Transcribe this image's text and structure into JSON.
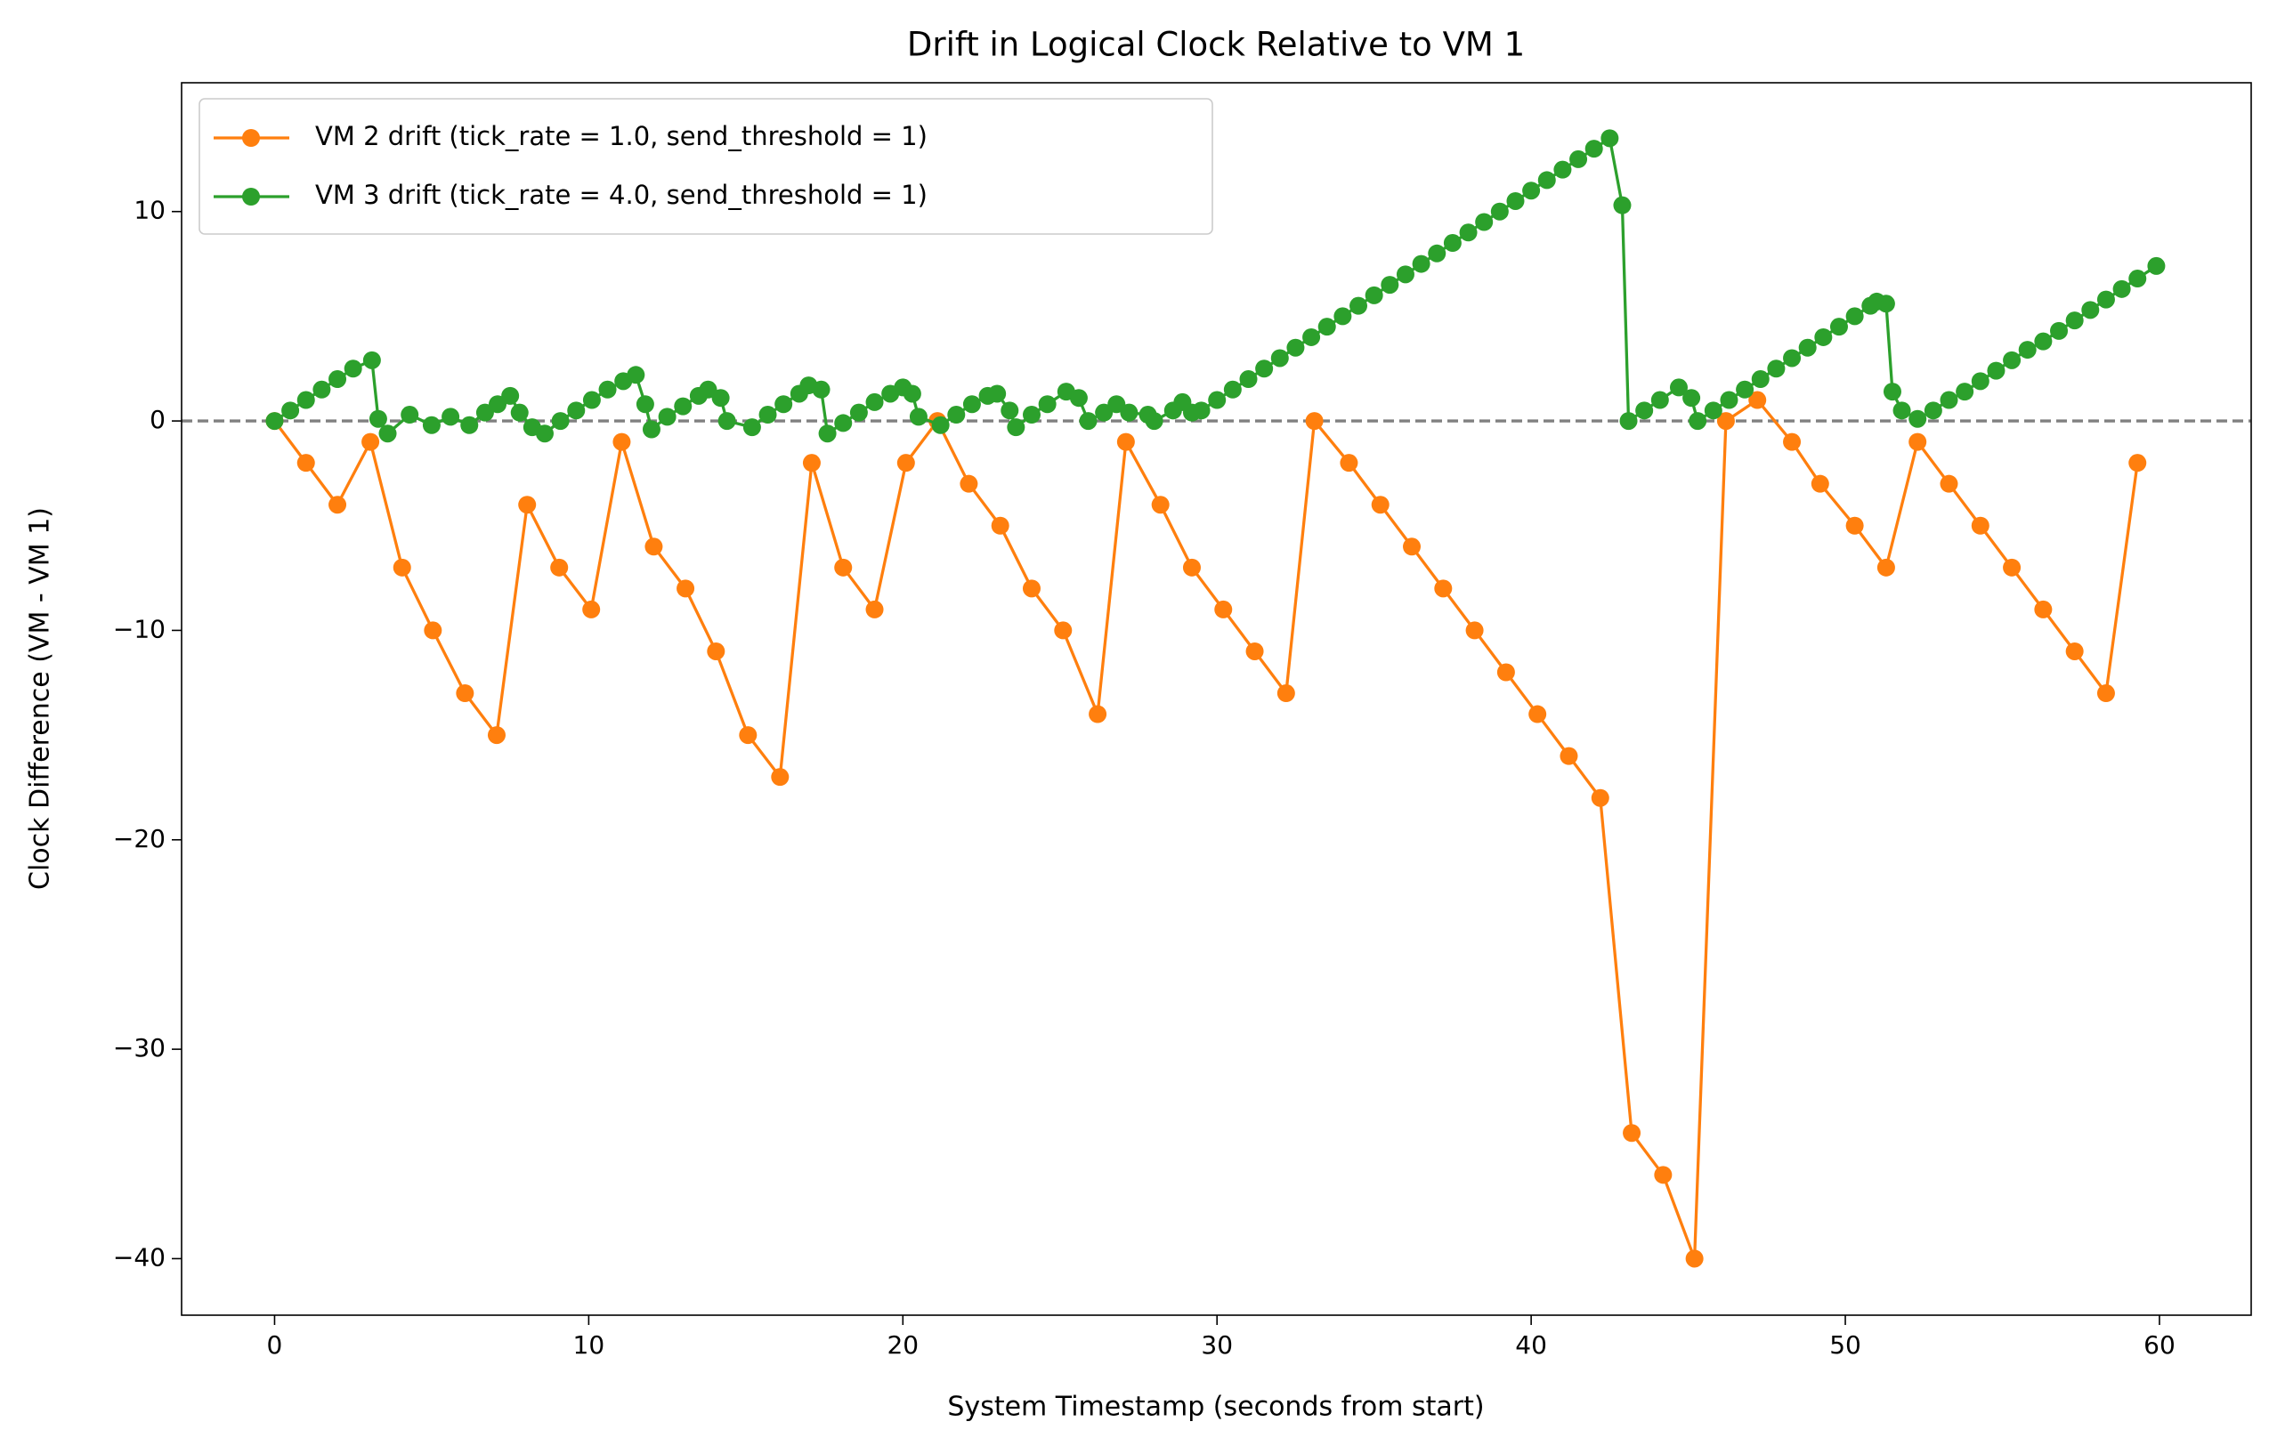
{
  "chart_data": {
    "type": "line",
    "title": "Drift in Logical Clock Relative to VM 1",
    "x_label": "System Timestamp (seconds from start)",
    "y_label": "Clock Difference (VM - VM 1)",
    "xlim": [
      -2.96,
      62.92
    ],
    "ylim": [
      -42.7,
      16.15
    ],
    "xticks": [
      0,
      10,
      20,
      30,
      40,
      50,
      60
    ],
    "yticks": [
      {
        "value": -40,
        "label": "−40"
      },
      {
        "value": -30,
        "label": "−30"
      },
      {
        "value": -20,
        "label": "−20"
      },
      {
        "value": -10,
        "label": "−10"
      },
      0,
      10
    ],
    "grid": false,
    "legend": "upper left",
    "reference_line": {
      "y": 0,
      "color": "#808080",
      "style": "dashed"
    },
    "series": [
      {
        "name": "VM 2 drift (tick_rate = 1.0, send_threshold = 1)",
        "color": "#ff7f0e",
        "x": [
          0,
          1.0,
          2.0,
          3.05,
          4.06,
          5.04,
          6.06,
          7.07,
          8.04,
          9.06,
          10.08,
          11.05,
          12.07,
          13.08,
          14.05,
          15.07,
          16.09,
          17.1,
          18.1,
          19.1,
          20.1,
          21.1,
          22.1,
          23.1,
          24.1,
          25.1,
          26.2,
          27.1,
          28.2,
          29.2,
          30.2,
          31.2,
          32.2,
          33.1,
          34.2,
          35.2,
          36.2,
          37.2,
          38.2,
          39.2,
          40.2,
          41.2,
          42.2,
          43.2,
          44.2,
          45.2,
          46.2,
          47.2,
          48.3,
          49.2,
          50.3,
          51.3,
          52.3,
          53.3,
          54.3,
          55.3,
          56.3,
          57.3,
          58.3,
          59.3
        ],
        "values": [
          0,
          -2,
          -4,
          -1,
          -7,
          -10,
          -13,
          -15,
          -4,
          -7,
          -9,
          -1,
          -6,
          -8,
          -11,
          -15,
          -17,
          -2,
          -7,
          -9,
          -2,
          0,
          -3,
          -5,
          -8,
          -10,
          -14,
          -1,
          -4,
          -7,
          -9,
          -11,
          -13,
          0,
          -2,
          -4,
          -6,
          -8,
          -10,
          -12,
          -14,
          -16,
          -18,
          -34,
          -36,
          -40,
          0,
          1,
          -1,
          -3,
          -5,
          -7,
          -1,
          -3,
          -5,
          -7,
          -9,
          -11,
          -13,
          -2
        ]
      },
      {
        "name": "VM 3 drift (tick_rate = 4.0, send_threshold = 1)",
        "color": "#2ca02c",
        "x": [
          0,
          0.5,
          1,
          1.5,
          2,
          2.5,
          3.1,
          3.3,
          3.6,
          4.3,
          5.0,
          5.6,
          6.2,
          6.7,
          7.1,
          7.5,
          7.8,
          8.2,
          8.6,
          9.1,
          9.6,
          10.1,
          10.6,
          11.1,
          11.5,
          11.8,
          12.0,
          12.5,
          13.0,
          13.5,
          13.8,
          14.2,
          14.4,
          15.2,
          15.7,
          16.2,
          16.7,
          17.0,
          17.4,
          17.6,
          18.1,
          18.6,
          19.1,
          19.6,
          20.0,
          20.3,
          20.5,
          21.2,
          21.7,
          22.2,
          22.7,
          23.0,
          23.4,
          23.6,
          24.1,
          24.6,
          25.2,
          25.6,
          25.9,
          26.4,
          26.8,
          27.2,
          27.8,
          28.0,
          28.6,
          28.9,
          29.2,
          29.5,
          30,
          30.5,
          31,
          31.5,
          32,
          32.5,
          33,
          33.5,
          34,
          34.5,
          35,
          35.5,
          36,
          36.5,
          37,
          37.5,
          38,
          38.5,
          39,
          39.5,
          40,
          40.5,
          41,
          41.5,
          42,
          42.5,
          42.9,
          43.1,
          43.6,
          44.1,
          44.7,
          45.1,
          45.3,
          45.8,
          46.3,
          46.8,
          47.3,
          47.8,
          48.3,
          48.8,
          49.3,
          49.8,
          50.3,
          50.8,
          51.0,
          51.3,
          51.5,
          51.8,
          52.3,
          52.8,
          53.3,
          53.8,
          54.3,
          54.8,
          55.3,
          55.8,
          56.3,
          56.8,
          57.3,
          57.8,
          58.3,
          58.8,
          59.3,
          59.9
        ],
        "values": [
          0,
          0.5,
          1,
          1.5,
          2,
          2.5,
          2.9,
          0.1,
          -0.6,
          0.3,
          -0.2,
          0.2,
          -0.2,
          0.4,
          0.8,
          1.2,
          0.4,
          -0.3,
          -0.6,
          0,
          0.5,
          1,
          1.5,
          1.9,
          2.2,
          0.8,
          -0.4,
          0.2,
          0.7,
          1.2,
          1.5,
          1.1,
          0,
          -0.3,
          0.3,
          0.8,
          1.3,
          1.7,
          1.5,
          -0.6,
          -0.1,
          0.4,
          0.9,
          1.3,
          1.6,
          1.3,
          0.2,
          -0.2,
          0.3,
          0.8,
          1.2,
          1.3,
          0.5,
          -0.3,
          0.3,
          0.8,
          1.4,
          1.1,
          0,
          0.4,
          0.8,
          0.4,
          0.3,
          0,
          0.5,
          0.9,
          0.4,
          0.5,
          1,
          1.5,
          2,
          2.5,
          3,
          3.5,
          4,
          4.5,
          5,
          5.5,
          6,
          6.5,
          7,
          7.5,
          8,
          8.5,
          9,
          9.5,
          10,
          10.5,
          11,
          11.5,
          12,
          12.5,
          13,
          13.5,
          10.3,
          0,
          0.5,
          1,
          1.6,
          1.1,
          0,
          0.5,
          1,
          1.5,
          2,
          2.5,
          3,
          3.5,
          4,
          4.5,
          5,
          5.5,
          5.7,
          5.6,
          1.4,
          0.5,
          0.1,
          0.5,
          1.0,
          1.4,
          1.9,
          2.4,
          2.9,
          3.4,
          3.8,
          4.3,
          4.8,
          5.3,
          5.8,
          6.3,
          6.8,
          7.4
        ]
      }
    ]
  }
}
